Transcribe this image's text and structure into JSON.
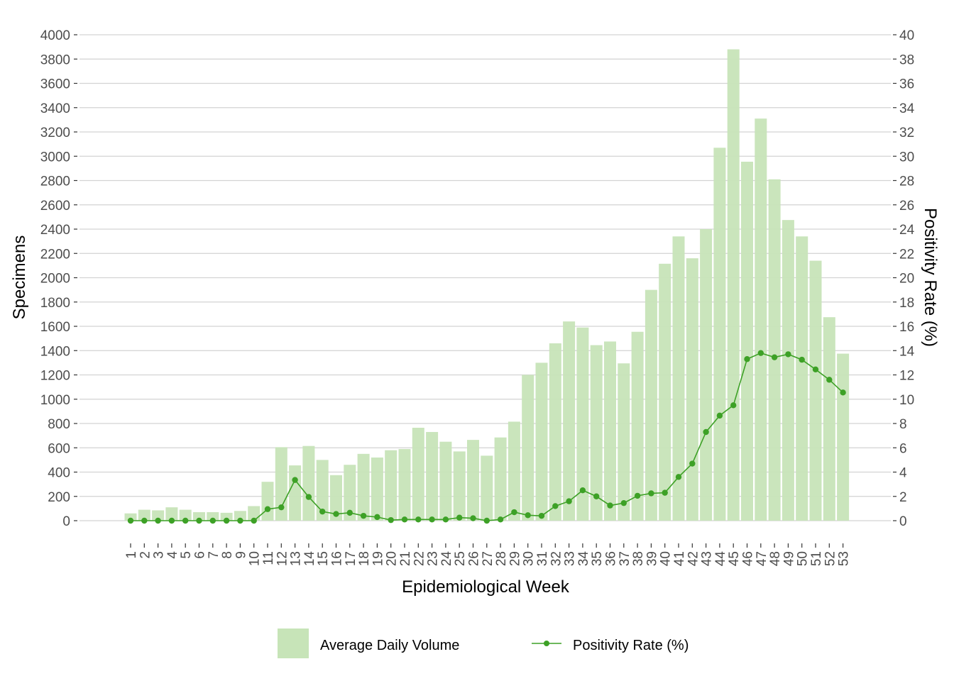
{
  "chart_data": {
    "type": "bar+line",
    "title": "",
    "xlabel": "Epidemiological Week",
    "ylabel": "Specimens",
    "ylabel_right": "Positivity Rate (%)",
    "ylim": [
      0,
      4000
    ],
    "ylim_right": [
      0,
      40
    ],
    "yticks": [
      "0",
      "200",
      "400",
      "600",
      "800",
      "1000",
      "1200",
      "1400",
      "1600",
      "1800",
      "2000",
      "2200",
      "2400",
      "2600",
      "2800",
      "3000",
      "3200",
      "3400",
      "3600",
      "3800",
      "4000"
    ],
    "yticks_right": [
      "0",
      "2",
      "4",
      "6",
      "8",
      "10",
      "12",
      "14",
      "16",
      "18",
      "20",
      "22",
      "24",
      "26",
      "28",
      "30",
      "32",
      "34",
      "36",
      "38",
      "40"
    ],
    "grid": true,
    "legend_position": "bottom",
    "categories": [
      "1",
      "2",
      "3",
      "4",
      "5",
      "6",
      "7",
      "8",
      "9",
      "10",
      "11",
      "12",
      "13",
      "14",
      "15",
      "16",
      "17",
      "18",
      "19",
      "20",
      "21",
      "22",
      "23",
      "24",
      "25",
      "26",
      "27",
      "28",
      "29",
      "30",
      "31",
      "32",
      "33",
      "34",
      "35",
      "36",
      "37",
      "38",
      "39",
      "40",
      "41",
      "42",
      "43",
      "44",
      "45",
      "46",
      "47",
      "48",
      "49",
      "50",
      "51",
      "52",
      "53"
    ],
    "series": [
      {
        "name": "Average Daily Volume",
        "type": "bar",
        "axis": "left",
        "color": "#c7e4b8",
        "values": [
          60,
          90,
          85,
          110,
          90,
          70,
          70,
          65,
          80,
          120,
          320,
          605,
          455,
          615,
          500,
          375,
          460,
          550,
          520,
          580,
          590,
          765,
          730,
          650,
          570,
          665,
          535,
          685,
          815,
          1200,
          1300,
          1460,
          1640,
          1590,
          1445,
          1475,
          1295,
          1555,
          1900,
          2115,
          2340,
          2160,
          2400,
          3070,
          3880,
          2955,
          3310,
          2810,
          2475,
          2340,
          2140,
          1675,
          1375
        ]
      },
      {
        "name": "Positivity Rate (%)",
        "type": "line",
        "axis": "right",
        "color": "#3da126",
        "values": [
          0.0,
          0.0,
          0.0,
          0.0,
          0.0,
          0.0,
          0.0,
          0.0,
          0.0,
          0.0,
          0.95,
          1.1,
          3.35,
          1.95,
          0.75,
          0.55,
          0.65,
          0.4,
          0.3,
          0.05,
          0.1,
          0.1,
          0.1,
          0.1,
          0.25,
          0.2,
          0.0,
          0.1,
          0.7,
          0.45,
          0.4,
          1.2,
          1.6,
          2.5,
          2.0,
          1.25,
          1.45,
          2.05,
          2.25,
          2.3,
          3.6,
          4.7,
          7.3,
          8.65,
          9.5,
          13.3,
          13.8,
          13.45,
          13.7,
          13.25,
          12.45,
          11.6,
          10.55
        ]
      }
    ]
  }
}
